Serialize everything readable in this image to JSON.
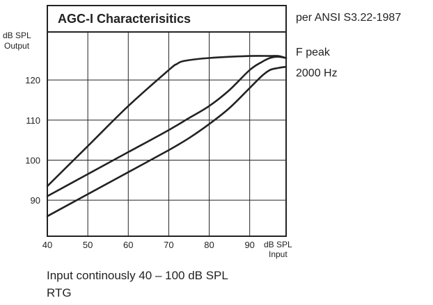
{
  "chart_data": {
    "type": "line",
    "title": "AGC-I Characterisitics",
    "ylabel_line1": "dB SPL",
    "ylabel_line2": "Output",
    "xlabel_line1": "dB SPL",
    "xlabel_line2": "Input",
    "xlim": [
      40,
      99
    ],
    "ylim": [
      81,
      132
    ],
    "x_ticks": [
      40,
      50,
      60,
      70,
      80,
      90
    ],
    "y_ticks": [
      90,
      100,
      110,
      120
    ],
    "grid": true,
    "legend": "none",
    "line_color": "#222222",
    "series": [
      {
        "x": [
          40,
          50,
          60,
          70,
          72,
          74,
          80,
          90,
          95,
          97,
          99
        ],
        "y": [
          93.5,
          103.5,
          113.5,
          122.5,
          124,
          124.8,
          125.5,
          126,
          126,
          126,
          125.5
        ]
      },
      {
        "x": [
          40,
          50,
          60,
          70,
          75,
          80,
          85,
          90,
          93,
          95,
          97,
          99
        ],
        "y": [
          91,
          96.5,
          102,
          107.5,
          110.5,
          113.5,
          117.5,
          122.5,
          124.5,
          125.5,
          125.8,
          125.5
        ]
      },
      {
        "x": [
          40,
          50,
          60,
          70,
          75,
          80,
          85,
          90,
          93,
          95,
          97,
          99
        ],
        "y": [
          86,
          91.5,
          97,
          102.5,
          105.5,
          109,
          113,
          118,
          121,
          122.5,
          123,
          123.3
        ]
      }
    ]
  },
  "annotations": {
    "standard": "per ANSI S3.22-1987",
    "f_peak": "F peak",
    "frequency": "2000 Hz",
    "caption_line1": "Input continously 40 – 100 dB SPL",
    "caption_line2": "RTG"
  }
}
